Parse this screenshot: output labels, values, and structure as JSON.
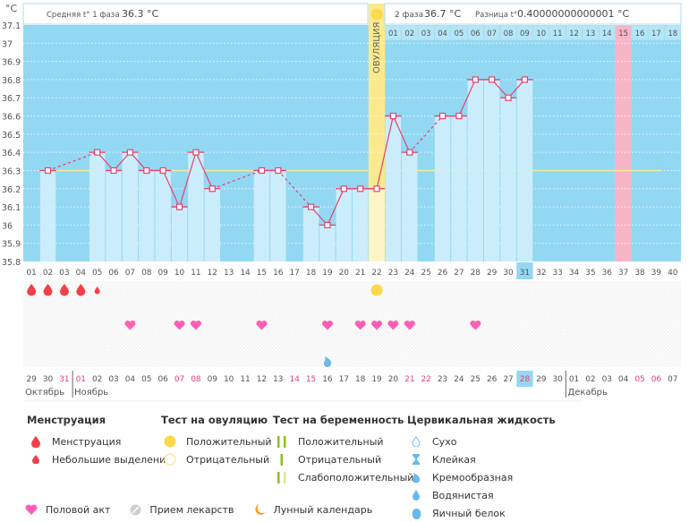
{
  "header": {
    "phase1_label": "Средняя t° 1 фаза",
    "phase1_value": "36.3 °C",
    "phase2_label": "2 фаза",
    "phase2_value": "36.7 °C",
    "diff_label": "Разница t°",
    "diff_value": "0.40000000000001 °C",
    "unit": "°C",
    "ovulation_label": "ОВУЛЯЦИЯ"
  },
  "chart_data": {
    "type": "bar",
    "title": "",
    "xlabel": "",
    "ylabel": "°C",
    "ylim": [
      35.8,
      37.1
    ],
    "yticks": [
      "37.1",
      "37",
      "36.9",
      "36.8",
      "36.7",
      "36.6",
      "36.5",
      "36.4",
      "36.3",
      "36.2",
      "36.1",
      "36",
      "35.9",
      "35.8"
    ],
    "cycle_days": [
      "01",
      "02",
      "03",
      "04",
      "05",
      "06",
      "07",
      "08",
      "09",
      "10",
      "11",
      "12",
      "13",
      "14",
      "15",
      "16",
      "17",
      "18",
      "19",
      "20",
      "21",
      "22",
      "23",
      "24",
      "25",
      "26",
      "27",
      "28",
      "29",
      "30",
      "31",
      "32",
      "33",
      "34",
      "35",
      "36",
      "37",
      "38",
      "39",
      "40"
    ],
    "temperatures": [
      null,
      36.3,
      null,
      null,
      36.4,
      36.3,
      36.4,
      36.3,
      36.3,
      36.1,
      36.4,
      36.2,
      null,
      null,
      36.3,
      36.3,
      null,
      36.1,
      36.0,
      36.2,
      36.2,
      36.2,
      36.6,
      36.4,
      null,
      36.6,
      36.6,
      36.8,
      36.8,
      36.7,
      36.8,
      null,
      null,
      null,
      null,
      null,
      null,
      null,
      null,
      null
    ],
    "coverline": 36.3,
    "ovulation_day": 22,
    "current_day": 31,
    "expected_period_day": 37,
    "luteal_days": [
      "01",
      "02",
      "03",
      "04",
      "05",
      "06",
      "07",
      "08",
      "09",
      "10",
      "11",
      "12",
      "13",
      "14",
      "15",
      "16",
      "17",
      "18"
    ],
    "moon_day": 16,
    "calendar_dates": [
      "29",
      "30",
      "31",
      "01",
      "02",
      "03",
      "04",
      "05",
      "06",
      "07",
      "08",
      "09",
      "10",
      "11",
      "12",
      "13",
      "14",
      "15",
      "16",
      "17",
      "18",
      "19",
      "20",
      "21",
      "22",
      "23",
      "24",
      "25",
      "26",
      "27",
      "28",
      "29",
      "30",
      "01",
      "02",
      "03",
      "04",
      "05",
      "06",
      "07"
    ],
    "weekend_indices": [
      2,
      3,
      9,
      10,
      16,
      17,
      23,
      24,
      30,
      37,
      38
    ],
    "today_index": 30,
    "months": [
      {
        "name": "Октябрь",
        "start_index": 0
      },
      {
        "name": "Ноябрь",
        "start_index": 3
      },
      {
        "name": "Декабрь",
        "start_index": 33
      }
    ],
    "menstruation": [
      {
        "day": 1,
        "kind": "full"
      },
      {
        "day": 2,
        "kind": "full"
      },
      {
        "day": 3,
        "kind": "full"
      },
      {
        "day": 4,
        "kind": "full"
      },
      {
        "day": 5,
        "kind": "light"
      }
    ],
    "ovulation_test_positive_days": [
      22
    ],
    "intercourse_days": [
      7,
      10,
      11,
      15,
      19,
      21,
      22,
      23,
      24,
      28
    ],
    "cervical_fluid": [
      {
        "day": 19,
        "kind": "creamy"
      }
    ]
  },
  "colors": {
    "plot_bg": "#93d8f2",
    "bar_fill": "#cdeefb",
    "line": "#e8416f",
    "coverline": "#f2eb98",
    "ovulation": "#fbe98d",
    "period": "#f8b4c7",
    "today": "#93d8f2",
    "weekend": "#e8416f",
    "menstruation": "#f0404b",
    "heart": "#ff5fb5",
    "ov_test": "#fdd84a",
    "moon": "#f59c1a",
    "fluid": "#6ab9ea"
  },
  "legend": {
    "menstruation": {
      "title": "Менструация",
      "items": [
        "Менструация",
        "Небольшие выделения"
      ]
    },
    "ovulation_test": {
      "title": "Тест на овуляцию",
      "items": [
        "Положительный",
        "Отрицательный"
      ]
    },
    "pregnancy_test": {
      "title": "Тест на беременность",
      "items": [
        "Положительный",
        "Отрицательный",
        "Слабоположительный"
      ]
    },
    "cervical_fluid": {
      "title": "Цервикальная жидкость",
      "items": [
        "Сухо",
        "Клейкая",
        "Кремообразная",
        "Водянистая",
        "Яичный белок"
      ]
    },
    "other": [
      "Половой акт",
      "Прием лекарств",
      "Лунный календарь"
    ]
  }
}
